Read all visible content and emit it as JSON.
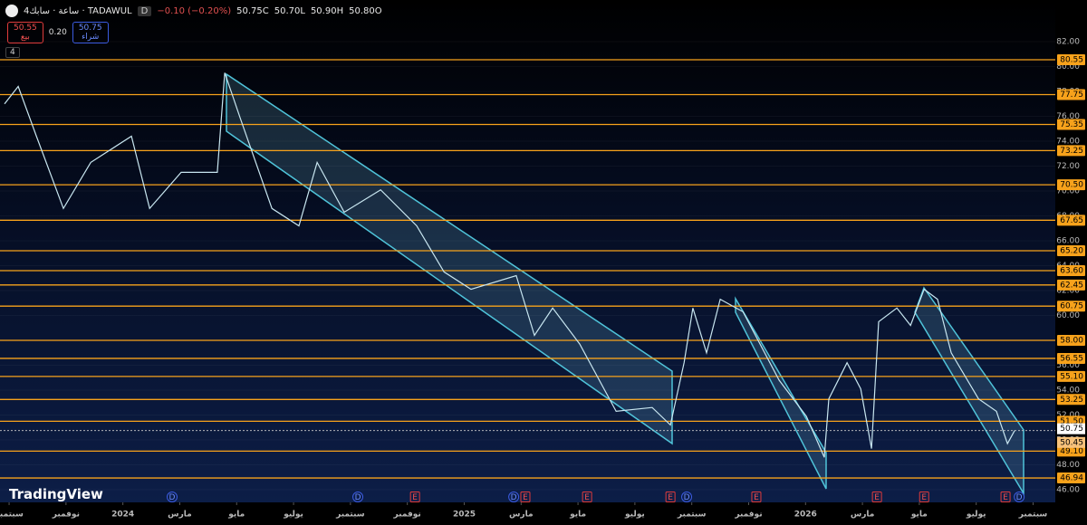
{
  "header": {
    "symbol": "4ساعة · سابك · TADAWUL",
    "interval": "D",
    "change": "−0.10 (−0.20%)",
    "close": "50.75C",
    "low": "50.70L",
    "high": "50.90H",
    "open": "50.80O"
  },
  "trade": {
    "sell_price": "50.55",
    "sell": "بيع",
    "spread": "0.20",
    "buy_price": "50.75",
    "buy": "شراء"
  },
  "indicators": "4",
  "brand": "TradingView",
  "chart_data": {
    "type": "line",
    "x": [
      -0.16,
      0.32,
      0.96,
      1.91,
      2.87,
      4.3,
      4.94,
      6.05,
      7.32,
      7.58,
      8.12,
      9.24,
      10.19,
      10.83,
      11.78,
      13.06,
      14.33,
      15.29,
      16.24,
      17.83,
      18.47,
      19.11,
      20.06,
      21.34,
      22.61,
      23.25,
      23.73,
      24.04,
      24.52,
      25,
      25.8,
      27.07,
      28.03,
      28.66,
      28.82,
      29.46,
      29.94,
      30.32,
      30.57,
      31.21,
      31.69,
      32.17,
      32.64,
      33.12,
      34.08,
      34.71,
      35.1,
      35.35
    ],
    "series": [
      {
        "color": "#c8e6f0",
        "values": [
          77,
          78.4,
          74.4,
          68.6,
          72.3,
          74.4,
          68.6,
          71.5,
          71.5,
          79.5,
          75.9,
          68.6,
          67.2,
          72.3,
          68.3,
          70.1,
          67.2,
          63.5,
          62.1,
          63.2,
          58.4,
          60.6,
          57.7,
          52.3,
          52.6,
          51.2,
          56.2,
          60.6,
          57,
          61.3,
          60.3,
          54.8,
          51.9,
          48.6,
          53.3,
          56.2,
          54.1,
          49.3,
          59.5,
          60.6,
          59.2,
          62.1,
          61.3,
          57,
          53.3,
          52.3,
          49.7,
          50.75
        ]
      }
    ],
    "xlim": [
      -0.32,
      36.78
    ],
    "ylim": [
      44.98,
      85.35
    ],
    "yticks": [
      {
        "value": 82,
        "label": "82.00"
      },
      {
        "value": 80,
        "label": "80.00"
      },
      {
        "value": 78,
        "label": "78.00"
      },
      {
        "value": 76,
        "label": "76.00"
      },
      {
        "value": 74,
        "label": "74.00"
      },
      {
        "value": 72,
        "label": "72.00"
      },
      {
        "value": 70,
        "label": "70.00"
      },
      {
        "value": 68,
        "label": "68.00"
      },
      {
        "value": 66,
        "label": "66.00"
      },
      {
        "value": 64,
        "label": "64.00"
      },
      {
        "value": 62,
        "label": "62.00"
      },
      {
        "value": 60,
        "label": "60.00"
      },
      {
        "value": 58,
        "label": "58.00"
      },
      {
        "value": 56,
        "label": "56.00"
      },
      {
        "value": 54,
        "label": "54.00"
      },
      {
        "value": 52,
        "label": "52.00"
      },
      {
        "value": 50,
        "label": "50.00"
      },
      {
        "value": 48,
        "label": "48.00"
      },
      {
        "value": 46,
        "label": "46.00"
      }
    ],
    "xticks": [
      {
        "value": 0,
        "label": "سبتمبر"
      },
      {
        "value": 2,
        "label": "نوفمبر"
      },
      {
        "value": 4,
        "label": "2024"
      },
      {
        "value": 6,
        "label": "مارس"
      },
      {
        "value": 8,
        "label": "مايو"
      },
      {
        "value": 10,
        "label": "يوليو"
      },
      {
        "value": 12,
        "label": "سبتمبر"
      },
      {
        "value": 14,
        "label": "نوفمبر"
      },
      {
        "value": 16,
        "label": "2025"
      },
      {
        "value": 18,
        "label": "مارس"
      },
      {
        "value": 20,
        "label": "مايو"
      },
      {
        "value": 22,
        "label": "يوليو"
      },
      {
        "value": 24,
        "label": "سبتمبر"
      },
      {
        "value": 26,
        "label": "نوفمبر"
      },
      {
        "value": 28,
        "label": "2026"
      },
      {
        "value": 30,
        "label": "مارس"
      },
      {
        "value": 32,
        "label": "مايو"
      },
      {
        "value": 34,
        "label": "يوليو"
      },
      {
        "value": 36,
        "label": "سبتمبر"
      }
    ],
    "levels": {
      "color": "#f7a21b",
      "values": [
        {
          "value": 80.55,
          "label": "80.55"
        },
        {
          "value": 77.75,
          "label": "77.75"
        },
        {
          "value": 75.35,
          "label": "75.35"
        },
        {
          "value": 73.25,
          "label": "73.25"
        },
        {
          "value": 70.5,
          "label": "70.50"
        },
        {
          "value": 67.65,
          "label": "67.65"
        },
        {
          "value": 65.2,
          "label": "65.20"
        },
        {
          "value": 63.6,
          "label": "63.60"
        },
        {
          "value": 62.45,
          "label": "62.45"
        },
        {
          "value": 60.75,
          "label": "60.75"
        },
        {
          "value": 58,
          "label": "58.00"
        },
        {
          "value": 56.55,
          "label": "56.55"
        },
        {
          "value": 55.1,
          "label": "55.10"
        },
        {
          "value": 53.25,
          "label": "53.25"
        },
        {
          "value": 51.5,
          "label": "51.50"
        },
        {
          "value": 49.1,
          "label": "49.10"
        },
        {
          "value": 46.94,
          "label": "46.94"
        }
      ]
    },
    "price_labels": [
      {
        "value": 50.75,
        "label": "50.75"
      },
      {
        "value": 50.45,
        "label": "50.45"
      }
    ],
    "events": [
      {
        "x": 5.73,
        "label": "D"
      },
      {
        "x": 12.26,
        "label": "D"
      },
      {
        "x": 14.27,
        "label": "E"
      },
      {
        "x": 17.74,
        "label": "D"
      },
      {
        "x": 18.15,
        "label": "E"
      },
      {
        "x": 20.32,
        "label": "E"
      },
      {
        "x": 23.25,
        "label": "E"
      },
      {
        "x": 23.82,
        "label": "D"
      },
      {
        "x": 26.27,
        "label": "E"
      },
      {
        "x": 30.51,
        "label": "E"
      },
      {
        "x": 32.17,
        "label": "E"
      },
      {
        "x": 35.03,
        "label": "E"
      },
      {
        "x": 35.51,
        "label": "D"
      }
    ]
  }
}
